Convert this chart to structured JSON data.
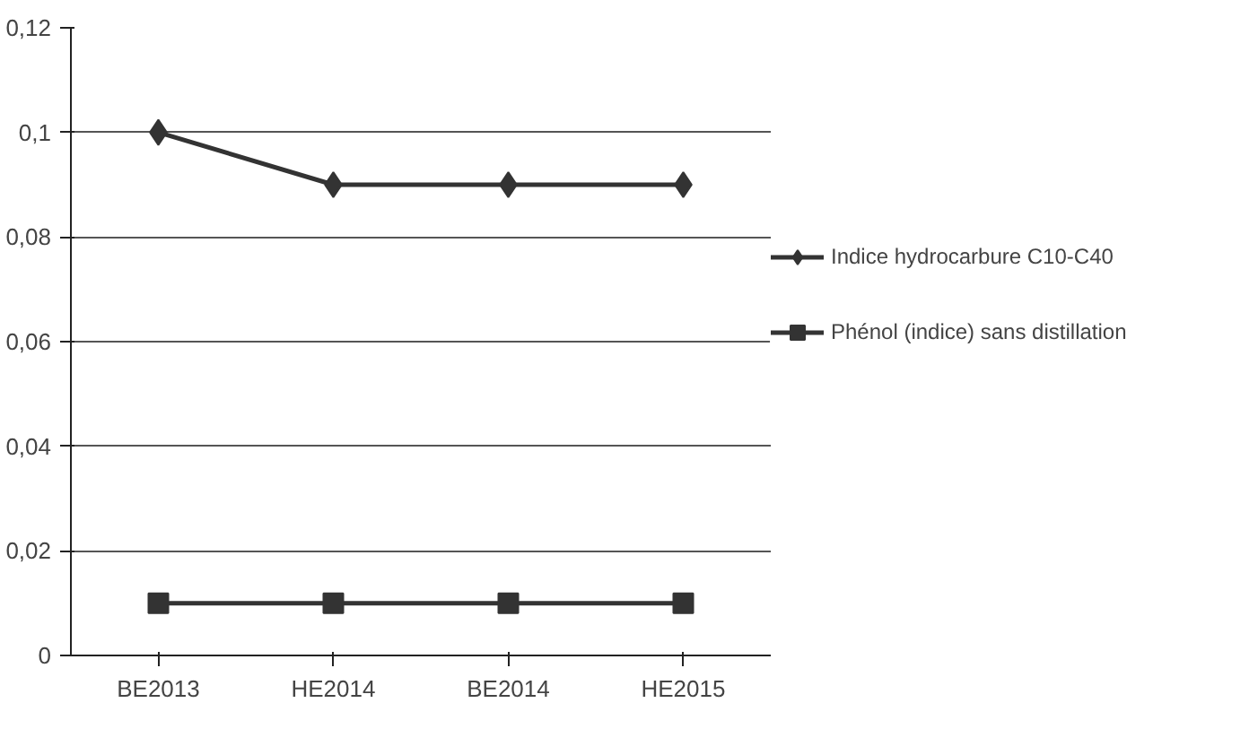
{
  "chart_data": {
    "type": "line",
    "categories": [
      "BE2013",
      "HE2014",
      "BE2014",
      "HE2015"
    ],
    "series": [
      {
        "name": "Indice hydrocarbure C10-C40",
        "color": "#333333",
        "marker": "diamond",
        "values": [
          0.1,
          0.09,
          0.09,
          0.09
        ]
      },
      {
        "name": "Phénol (indice) sans distillation",
        "color": "#333333",
        "marker": "square",
        "values": [
          0.01,
          0.01,
          0.01,
          0.01
        ]
      }
    ],
    "ylim": [
      0,
      0.12
    ],
    "yticks": [
      {
        "value": 0,
        "label": "0"
      },
      {
        "value": 0.02,
        "label": "0,02"
      },
      {
        "value": 0.04,
        "label": "0,04"
      },
      {
        "value": 0.06,
        "label": "0,06"
      },
      {
        "value": 0.08,
        "label": "0,08"
      },
      {
        "value": 0.1,
        "label": "0,1"
      },
      {
        "value": 0.12,
        "label": "0,12"
      }
    ],
    "grid": "y",
    "legend": "right",
    "line_style": "solid"
  }
}
